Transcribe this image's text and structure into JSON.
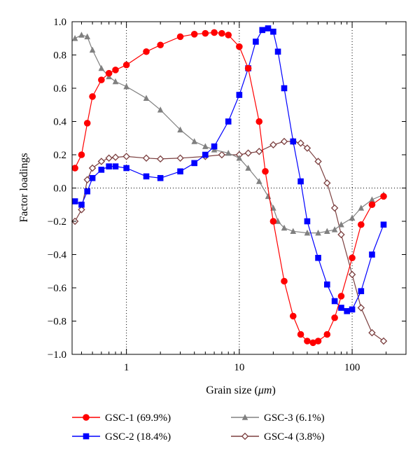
{
  "chart_data": {
    "type": "line",
    "xlabel": "Grain size (",
    "xlabel_unit": "μm",
    "xlabel_close": ")",
    "ylabel": "Factor loadings",
    "x_scale": "log",
    "xlim": [
      0.33,
      300
    ],
    "ylim": [
      -1.0,
      1.0
    ],
    "x_ticks": [
      1,
      10,
      100
    ],
    "x_tick_labels": [
      "1",
      "10",
      "100"
    ],
    "y_ticks": [
      -1.0,
      -0.8,
      -0.6,
      -0.4,
      -0.2,
      0.0,
      0.2,
      0.4,
      0.6,
      0.8,
      1.0
    ],
    "y_tick_labels": [
      "−1.0",
      "−0.8",
      "−0.6",
      "−0.4",
      "−0.2",
      "0.0",
      "0.2",
      "0.4",
      "0.6",
      "0.8",
      "1.0"
    ],
    "grid": "dotted at x=1, 10, 100",
    "zero_line": "dotted",
    "legend_position": "bottom",
    "series": [
      {
        "name": "GSC-1 (69.9%)",
        "color": "#ff0000",
        "marker": "circle",
        "x": [
          0.35,
          0.4,
          0.45,
          0.5,
          0.6,
          0.7,
          0.8,
          1.0,
          1.5,
          2,
          3,
          4,
          5,
          6,
          7,
          8,
          10,
          12,
          15,
          17,
          20,
          25,
          30,
          35,
          40,
          45,
          50,
          60,
          70,
          80,
          100,
          120,
          150,
          190
        ],
        "y": [
          0.12,
          0.2,
          0.39,
          0.55,
          0.65,
          0.69,
          0.71,
          0.74,
          0.82,
          0.86,
          0.91,
          0.925,
          0.93,
          0.935,
          0.93,
          0.92,
          0.85,
          0.72,
          0.4,
          0.1,
          -0.2,
          -0.56,
          -0.77,
          -0.88,
          -0.92,
          -0.93,
          -0.92,
          -0.88,
          -0.78,
          -0.65,
          -0.42,
          -0.22,
          -0.1,
          -0.05
        ]
      },
      {
        "name": "GSC-2 (18.4%)",
        "color": "#0000ff",
        "marker": "square",
        "x": [
          0.35,
          0.4,
          0.45,
          0.5,
          0.6,
          0.7,
          0.8,
          1.0,
          1.5,
          2,
          3,
          4,
          5,
          6,
          8,
          10,
          12,
          14,
          16,
          18,
          20,
          22,
          25,
          30,
          35,
          40,
          50,
          60,
          70,
          80,
          90,
          100,
          120,
          150,
          190
        ],
        "y": [
          -0.08,
          -0.1,
          -0.02,
          0.06,
          0.11,
          0.13,
          0.13,
          0.12,
          0.07,
          0.06,
          0.1,
          0.15,
          0.2,
          0.25,
          0.4,
          0.56,
          0.72,
          0.88,
          0.95,
          0.96,
          0.94,
          0.82,
          0.6,
          0.28,
          0.04,
          -0.2,
          -0.42,
          -0.58,
          -0.68,
          -0.72,
          -0.74,
          -0.73,
          -0.62,
          -0.4,
          -0.22
        ]
      },
      {
        "name": "GSC-3 (6.1%)",
        "color": "#808080",
        "marker": "triangle",
        "x": [
          0.35,
          0.4,
          0.45,
          0.5,
          0.6,
          0.7,
          0.8,
          1.0,
          1.5,
          2,
          3,
          4,
          5,
          6,
          8,
          10,
          12,
          15,
          18,
          20,
          22,
          25,
          30,
          40,
          50,
          60,
          70,
          80,
          100,
          120,
          150,
          190
        ],
        "y": [
          0.9,
          0.92,
          0.91,
          0.83,
          0.72,
          0.67,
          0.64,
          0.61,
          0.54,
          0.47,
          0.35,
          0.28,
          0.25,
          0.23,
          0.21,
          0.18,
          0.12,
          0.04,
          -0.05,
          -0.12,
          -0.2,
          -0.24,
          -0.26,
          -0.27,
          -0.27,
          -0.26,
          -0.25,
          -0.22,
          -0.18,
          -0.12,
          -0.07,
          -0.04
        ]
      },
      {
        "name": "GSC-4 (3.8%)",
        "color": "#7b3f3f",
        "marker": "diamond",
        "x": [
          0.35,
          0.4,
          0.45,
          0.5,
          0.6,
          0.7,
          0.8,
          1.0,
          1.5,
          2,
          3,
          5,
          7,
          10,
          12,
          15,
          20,
          25,
          30,
          35,
          40,
          50,
          60,
          70,
          80,
          100,
          120,
          150,
          190
        ],
        "y": [
          -0.2,
          -0.13,
          0.05,
          0.12,
          0.16,
          0.18,
          0.185,
          0.19,
          0.18,
          0.175,
          0.18,
          0.19,
          0.2,
          0.2,
          0.21,
          0.22,
          0.26,
          0.28,
          0.28,
          0.27,
          0.24,
          0.16,
          0.03,
          -0.12,
          -0.28,
          -0.52,
          -0.72,
          -0.87,
          -0.92
        ]
      }
    ]
  }
}
